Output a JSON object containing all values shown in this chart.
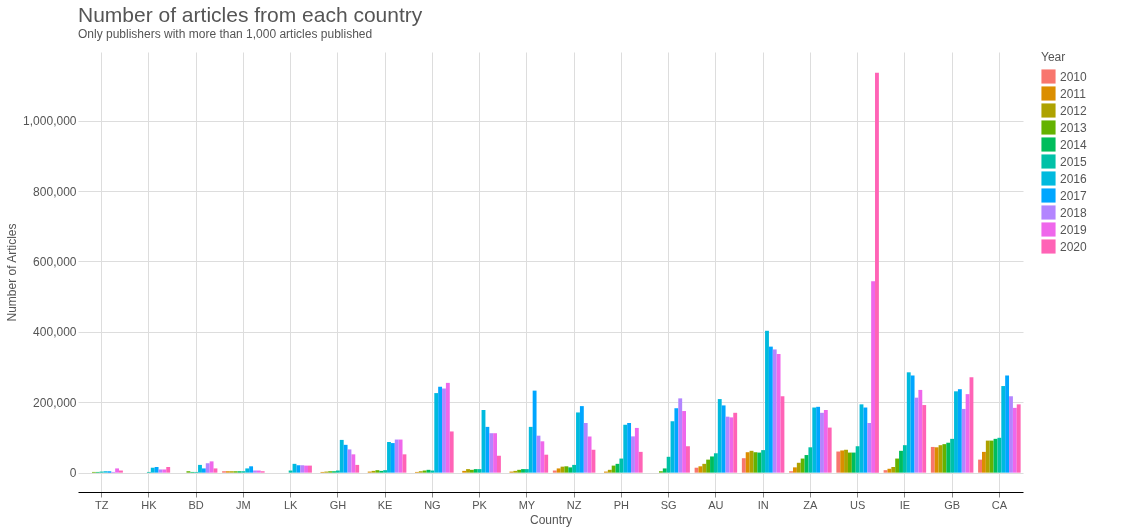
{
  "chart_data": {
    "type": "bar",
    "title": "Number of articles from each country",
    "subtitle": "Only publishers with more than 1,000 articles published",
    "xlabel": "Country",
    "ylabel": "Number of Articles",
    "legend_title": "Year",
    "categories": [
      "TZ",
      "HK",
      "BD",
      "JM",
      "LK",
      "GH",
      "KE",
      "NG",
      "PK",
      "MY",
      "NZ",
      "PH",
      "SG",
      "AU",
      "IN",
      "ZA",
      "US",
      "IE",
      "GB",
      "CA"
    ],
    "series": [
      {
        "name": "2010",
        "color": "#f8766d",
        "values": [
          null,
          null,
          null,
          4000,
          null,
          null,
          null,
          null,
          null,
          null,
          6000,
          null,
          null,
          14000,
          41000,
          4000,
          60000,
          7000,
          73000,
          37000
        ]
      },
      {
        "name": "2011",
        "color": "#db8e00",
        "values": [
          null,
          null,
          null,
          4000,
          null,
          2000,
          3000,
          2000,
          5000,
          3000,
          12000,
          3000,
          null,
          18000,
          58000,
          15000,
          63000,
          11000,
          72000,
          59000
        ]
      },
      {
        "name": "2012",
        "color": "#aea200",
        "values": [
          null,
          null,
          null,
          4000,
          null,
          3000,
          5000,
          4000,
          10000,
          5000,
          17000,
          8000,
          null,
          25000,
          62000,
          28000,
          65000,
          16000,
          78000,
          91000
        ]
      },
      {
        "name": "2013",
        "color": "#64b200",
        "values": [
          2000,
          null,
          4000,
          4000,
          null,
          4000,
          7000,
          6000,
          8000,
          8000,
          18000,
          20000,
          4000,
          37000,
          58000,
          40000,
          57000,
          40000,
          81000,
          91000
        ]
      },
      {
        "name": "2014",
        "color": "#00bd5c",
        "values": [
          2000,
          null,
          2000,
          4000,
          null,
          4000,
          5000,
          8000,
          10000,
          10000,
          15000,
          25000,
          12000,
          46000,
          57000,
          50000,
          57000,
          62000,
          85000,
          96000
        ]
      },
      {
        "name": "2015",
        "color": "#00c1a7",
        "values": [
          3000,
          2000,
          2000,
          4000,
          6000,
          6000,
          7000,
          6000,
          10000,
          10000,
          22000,
          40000,
          45000,
          55000,
          64000,
          72000,
          75000,
          78000,
          96000,
          99000
        ]
      },
      {
        "name": "2016",
        "color": "#00bade",
        "values": [
          4000,
          14000,
          22000,
          12000,
          25000,
          93000,
          87000,
          226000,
          178000,
          130000,
          171000,
          136000,
          146000,
          209000,
          403000,
          185000,
          194000,
          285000,
          231000,
          246000
        ]
      },
      {
        "name": "2017",
        "color": "#00a6ff",
        "values": [
          4000,
          16000,
          12000,
          18000,
          21000,
          79000,
          84000,
          244000,
          130000,
          233000,
          189000,
          141000,
          183000,
          191000,
          358000,
          187000,
          185000,
          276000,
          237000,
          276000
        ]
      },
      {
        "name": "2018",
        "color": "#b385ff",
        "values": [
          2000,
          9000,
          27000,
          6000,
          21000,
          66000,
          94000,
          239000,
          112000,
          105000,
          141000,
          103000,
          211000,
          159000,
          350000,
          170000,
          141000,
          213000,
          181000,
          217000
        ]
      },
      {
        "name": "2019",
        "color": "#ef67eb",
        "values": [
          12000,
          9000,
          32000,
          6000,
          20000,
          52000,
          94000,
          255000,
          112000,
          89000,
          103000,
          127000,
          175000,
          157000,
          337000,
          178000,
          544000,
          235000,
          223000,
          184000
        ]
      },
      {
        "name": "2020",
        "color": "#ff63b6",
        "values": [
          6000,
          16000,
          12000,
          4000,
          20000,
          22000,
          52000,
          117000,
          48000,
          51000,
          65000,
          59000,
          75000,
          170000,
          217000,
          128000,
          1136000,
          192000,
          271000,
          194000
        ]
      }
    ],
    "ylim": [
      -55000,
      1195000
    ],
    "yticks": [
      {
        "value": 0,
        "label": "0"
      },
      {
        "value": 200000,
        "label": "200,000"
      },
      {
        "value": 400000,
        "label": "400,000"
      },
      {
        "value": 600000,
        "label": "600,000"
      },
      {
        "value": 800000,
        "label": "800,000"
      },
      {
        "value": 1000000,
        "label": "1,000,000"
      }
    ],
    "grid": true,
    "legend": "right"
  }
}
